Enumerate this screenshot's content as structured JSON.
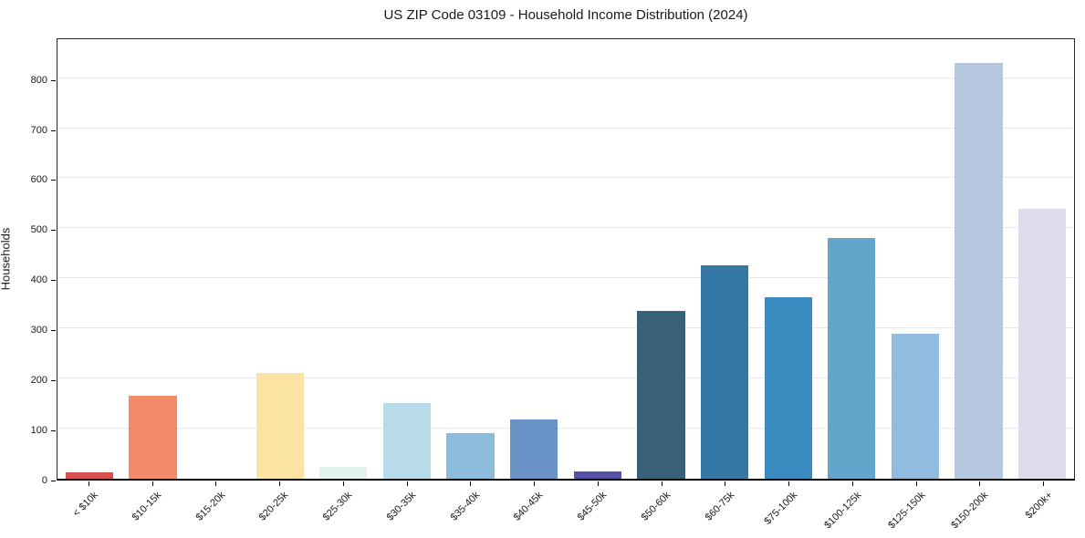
{
  "title": "US ZIP Code 03109 - Household Income Distribution (2024)",
  "ylabel": "Households",
  "chart_data": {
    "type": "bar",
    "title": "US ZIP Code 03109 - Household Income Distribution (2024)",
    "xlabel": "",
    "ylabel": "Households",
    "categories": [
      "< $10k",
      "$10-15k",
      "$15-20k",
      "$20-25k",
      "$25-30k",
      "$30-35k",
      "$35-40k",
      "$40-45k",
      "$45-50k",
      "$50-60k",
      "$60-75k",
      "$75-100k",
      "$100-125k",
      "$125-150k",
      "$150-200k",
      "$200k+"
    ],
    "values": [
      13,
      167,
      0,
      212,
      24,
      152,
      91,
      119,
      15,
      338,
      428,
      365,
      483,
      291,
      836,
      543
    ],
    "bar_colors": [
      "#d94f4f",
      "#f58a68",
      "#f8d492",
      "#fbe3a3",
      "#e4f2f0",
      "#b7dbe8",
      "#8cbcdc",
      "#6992c6",
      "#5352a5",
      "#386077",
      "#3578a5",
      "#3a8bbf",
      "#64a6cb",
      "#92bcdf",
      "#b5c8e0",
      "#dcdcea"
    ],
    "yticks": [
      0,
      100,
      200,
      300,
      400,
      500,
      600,
      700,
      800
    ],
    "ylim": [
      0,
      883
    ],
    "grid": "horizontal",
    "grid_color": "#e9e9f1",
    "axis_color": "#000000",
    "text_color": "#1a1a1a",
    "background_color": "#ffffff",
    "legend_position": "none",
    "x_tick_rotation_deg": 45
  }
}
